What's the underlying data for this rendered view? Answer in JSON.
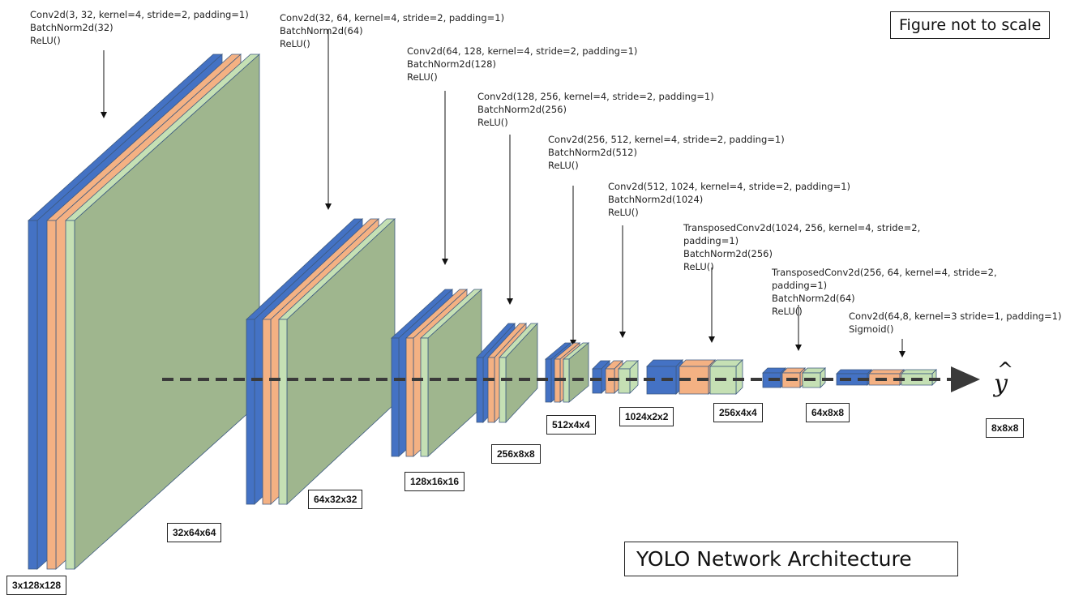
{
  "note": "Figure not to scale",
  "title": "YOLO Network Architecture",
  "output_symbol": "y",
  "output_hat": "^",
  "colors": {
    "blue": "#4472c4",
    "orange": "#f4b183",
    "green": "#c5e0b4",
    "face_green": "#9fb68e",
    "border": "#3d5a80"
  },
  "layers": [
    {
      "ops": [
        "Conv2d(3,  32, kernel=4, stride=2, padding=1)",
        "BatchNorm2d(32)",
        "ReLU()"
      ]
    },
    {
      "ops": [
        "Conv2d(32,  64, kernel=4, stride=2, padding=1)",
        "BatchNorm2d(64)",
        "ReLU()"
      ]
    },
    {
      "ops": [
        "Conv2d(64,  128, kernel=4, stride=2, padding=1)",
        "BatchNorm2d(128)",
        "ReLU()"
      ]
    },
    {
      "ops": [
        "Conv2d(128,  256, kernel=4, stride=2, padding=1)",
        "BatchNorm2d(256)",
        "ReLU()"
      ]
    },
    {
      "ops": [
        "Conv2d(256,  512, kernel=4, stride=2, padding=1)",
        "BatchNorm2d(512)",
        "ReLU()"
      ]
    },
    {
      "ops": [
        "Conv2d(512,  1024, kernel=4, stride=2, padding=1)",
        "BatchNorm2d(1024)",
        "ReLU()"
      ]
    },
    {
      "ops": [
        "TransposedConv2d(1024,  256, kernel=4, stride=2,",
        "padding=1)",
        "BatchNorm2d(256)",
        "ReLU()"
      ]
    },
    {
      "ops": [
        "TransposedConv2d(256,  64, kernel=4, stride=2,",
        "padding=1)",
        "BatchNorm2d(64)",
        "ReLU()"
      ]
    },
    {
      "ops": [
        "Conv2d(64,8,  kernel=3 stride=1, padding=1)",
        "Sigmoid()"
      ]
    }
  ],
  "shapes": [
    "3x128x128",
    "32x64x64",
    "64x32x32",
    "128x16x16",
    "256x8x8",
    "512x4x4",
    "1024x2x2",
    "256x4x4",
    "64x8x8",
    "8x8x8"
  ]
}
